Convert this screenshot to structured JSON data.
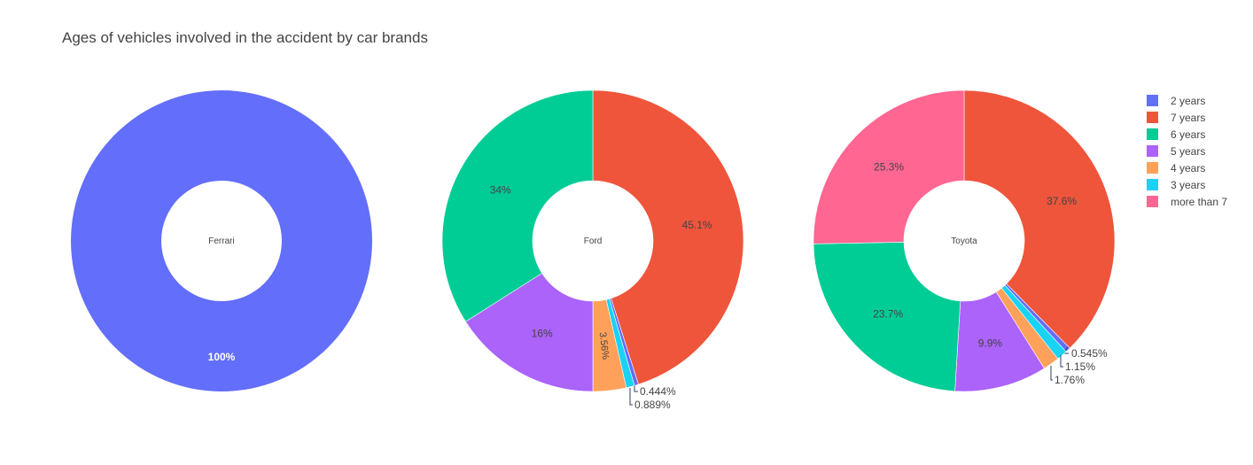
{
  "chart_data": {
    "type": "pie",
    "title": "Ages of vehicles involved in the accident by car brands",
    "hole": 0.4,
    "legend_position": "right",
    "legend": [
      {
        "label": "2 years",
        "color": "#636efa"
      },
      {
        "label": "7 years",
        "color": "#EF553B"
      },
      {
        "label": "6 years",
        "color": "#00cc96"
      },
      {
        "label": "5 years",
        "color": "#ab63fa"
      },
      {
        "label": "4 years",
        "color": "#FFA15A"
      },
      {
        "label": "3 years",
        "color": "#19d3f3"
      },
      {
        "label": "more than 7",
        "color": "#FF6692"
      }
    ],
    "pies": [
      {
        "name": "Ferrari",
        "slices": [
          {
            "label": "2 years",
            "value": 100,
            "text": "100%"
          }
        ]
      },
      {
        "name": "Ford",
        "slices": [
          {
            "label": "7 years",
            "value": 45.1,
            "text": "45.1%"
          },
          {
            "label": "2 years",
            "value": 0.444,
            "text": "0.444%"
          },
          {
            "label": "3 years",
            "value": 0.889,
            "text": "0.889%"
          },
          {
            "label": "4 years",
            "value": 3.56,
            "text": "3.56%"
          },
          {
            "label": "5 years",
            "value": 16,
            "text": "16%"
          },
          {
            "label": "6 years",
            "value": 34,
            "text": "34%"
          }
        ]
      },
      {
        "name": "Toyota",
        "slices": [
          {
            "label": "7 years",
            "value": 37.6,
            "text": "37.6%"
          },
          {
            "label": "2 years",
            "value": 0.545,
            "text": "0.545%"
          },
          {
            "label": "3 years",
            "value": 1.15,
            "text": "1.15%"
          },
          {
            "label": "4 years",
            "value": 1.76,
            "text": "1.76%"
          },
          {
            "label": "5 years",
            "value": 9.9,
            "text": "9.9%"
          },
          {
            "label": "6 years",
            "value": 23.7,
            "text": "23.7%"
          },
          {
            "label": "more than 7",
            "value": 25.3,
            "text": "25.3%"
          }
        ]
      }
    ]
  }
}
